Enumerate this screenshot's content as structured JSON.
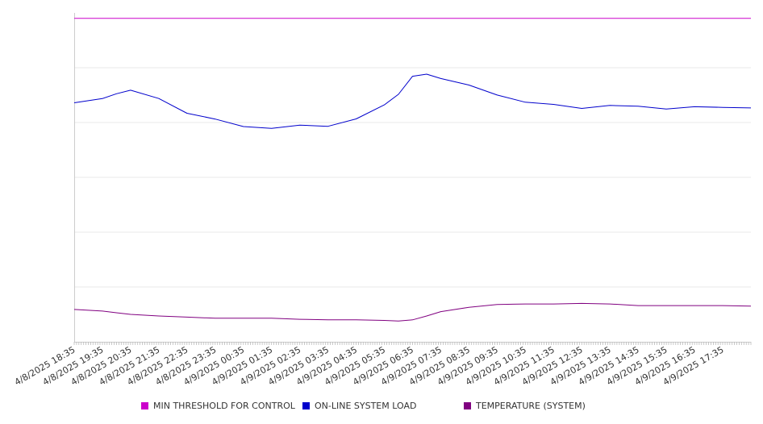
{
  "chart_data": {
    "type": "line",
    "title": "",
    "xlabel": "",
    "ylabel": "",
    "x_tick_labels": [
      "4/8/2025 18:35",
      "4/8/2025 19:35",
      "4/8/2025 20:35",
      "4/8/2025 21:35",
      "4/8/2025 22:35",
      "4/8/2025 23:35",
      "4/9/2025 00:35",
      "4/9/2025 01:35",
      "4/9/2025 02:35",
      "4/9/2025 03:35",
      "4/9/2025 04:35",
      "4/9/2025 05:35",
      "4/9/2025 06:35",
      "4/9/2025 07:35",
      "4/9/2025 08:35",
      "4/9/2025 09:35",
      "4/9/2025 10:35",
      "4/9/2025 11:35",
      "4/9/2025 12:35",
      "4/9/2025 13:35",
      "4/9/2025 14:35",
      "4/9/2025 15:35",
      "4/9/2025 16:35",
      "4/9/2025 17:35"
    ],
    "x_hours": [
      0,
      1,
      1.5,
      2,
      3,
      4,
      5,
      6,
      7,
      8,
      9,
      10,
      11,
      11.5,
      12,
      12.5,
      13,
      14,
      15,
      16,
      17,
      18,
      19,
      20,
      21,
      22,
      23,
      24
    ],
    "ylim": [
      0,
      60
    ],
    "y_grid": [
      10,
      20,
      30,
      40,
      50
    ],
    "y_tick_labels_visible": false,
    "grid": true,
    "legend_position": "bottom",
    "series": [
      {
        "name": "MIN THRESHOLD FOR CONTROL",
        "color": "#cc00cc",
        "values": [
          59,
          59,
          59,
          59,
          59,
          59,
          59,
          59,
          59,
          59,
          59,
          59,
          59,
          59,
          59,
          59,
          59,
          59,
          59,
          59,
          59,
          59,
          59,
          59,
          59,
          59,
          59,
          59
        ]
      },
      {
        "name": "ON-LINE SYSTEM LOAD",
        "color": "#0000cc",
        "values": [
          43.6,
          44.1,
          45.6,
          45.7,
          44.3,
          42.0,
          40.3,
          39.4,
          39.1,
          39.2,
          39.6,
          40.6,
          43.0,
          45.5,
          48.2,
          48.8,
          48.3,
          46.5,
          45.2,
          43.8,
          43.0,
          42.9,
          43.0,
          42.8,
          42.8,
          42.6,
          42.8,
          42.9
        ]
      },
      {
        "name": "TEMPERATURE (SYSTEM)",
        "color": "#800080",
        "values": [
          5.9,
          5.6,
          5.3,
          5.0,
          4.7,
          4.5,
          4.3,
          4.3,
          4.3,
          4.1,
          4.0,
          4.0,
          3.9,
          3.8,
          4.0,
          4.7,
          5.5,
          6.3,
          6.8,
          6.9,
          6.9,
          7.0,
          6.9,
          6.6,
          6.6,
          6.6,
          6.6,
          6.5
        ]
      }
    ]
  }
}
